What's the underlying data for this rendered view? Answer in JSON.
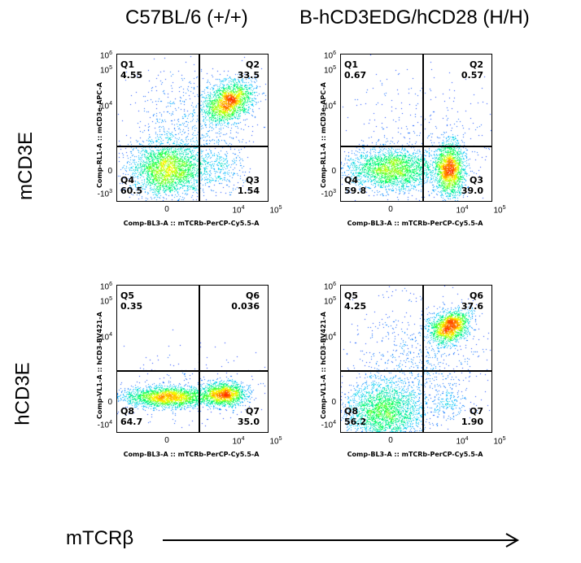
{
  "column_titles": [
    "C57BL/6 (+/+)",
    "B-hCD3EDG/hCD28 (H/H)"
  ],
  "row_titles": [
    "mCD3E",
    "hCD3E"
  ],
  "x_axis_caption": "mTCRβ",
  "chart_data": {
    "type": "scatter",
    "subtype": "flow-cytometry-density-plot",
    "colormap": [
      "#1010ff",
      "#00c8ff",
      "#00ff60",
      "#ffff00",
      "#ff2000"
    ],
    "panels": [
      {
        "row": "mCD3E",
        "column": "C57BL/6 (+/+)",
        "xlabel": "Comp-BL3-A :: mTCRb-PerCP-Cy5.5-A",
        "ylabel": "Comp-RL1-A :: mCD3e-APC-A",
        "x_ticks": [
          "0",
          "10^4",
          "10^5"
        ],
        "y_ticks": [
          "10^6",
          "10^5",
          "10^4",
          "0",
          "-10^3"
        ],
        "quadrants": [
          {
            "name": "Q1",
            "percent": "4.55"
          },
          {
            "name": "Q2",
            "percent": "33.5"
          },
          {
            "name": "Q3",
            "percent": "1.54"
          },
          {
            "name": "Q4",
            "percent": "60.5"
          }
        ],
        "populations": [
          "TCRb- CD3e- (Q4, large)",
          "TCRb+ CD3e+ (Q2, dense)"
        ]
      },
      {
        "row": "mCD3E",
        "column": "B-hCD3EDG/hCD28 (H/H)",
        "xlabel": "Comp-BL3-A :: mTCRb-PerCP-Cy5.5-A",
        "ylabel": "Comp-RL1-A :: mCD3e-APC-A",
        "x_ticks": [
          "0",
          "10^4",
          "10^5"
        ],
        "y_ticks": [
          "10^6",
          "10^5",
          "10^4",
          "0",
          "-10^3"
        ],
        "quadrants": [
          {
            "name": "Q1",
            "percent": "0.67"
          },
          {
            "name": "Q2",
            "percent": "0.57"
          },
          {
            "name": "Q3",
            "percent": "39.0"
          },
          {
            "name": "Q4",
            "percent": "59.8"
          }
        ]
      },
      {
        "row": "hCD3E",
        "column": "C57BL/6 (+/+)",
        "xlabel": "Comp-BL3-A :: mTCRb-PerCP-Cy5.5-A",
        "ylabel": "Comp-VL1-A :: hCD3-BV421-A",
        "x_ticks": [
          "0",
          "10^4",
          "10^5"
        ],
        "y_ticks": [
          "10^6",
          "10^5",
          "10^4",
          "0",
          "-10^4"
        ],
        "quadrants": [
          {
            "name": "Q5",
            "percent": "0.35"
          },
          {
            "name": "Q6",
            "percent": "0.036"
          },
          {
            "name": "Q7",
            "percent": "35.0"
          },
          {
            "name": "Q8",
            "percent": "64.7"
          }
        ]
      },
      {
        "row": "hCD3E",
        "column": "B-hCD3EDG/hCD28 (H/H)",
        "xlabel": "Comp-BL3-A :: mTCRb-PerCP-Cy5.5-A",
        "ylabel": "Comp-VL1-A :: hCD3-BV421-A",
        "x_ticks": [
          "0",
          "10^4",
          "10^5"
        ],
        "y_ticks": [
          "10^6",
          "10^5",
          "10^4",
          "0",
          "-10^4"
        ],
        "quadrants": [
          {
            "name": "Q5",
            "percent": "4.25"
          },
          {
            "name": "Q6",
            "percent": "37.6"
          },
          {
            "name": "Q7",
            "percent": "1.90"
          },
          {
            "name": "Q8",
            "percent": "56.2"
          }
        ]
      }
    ]
  }
}
